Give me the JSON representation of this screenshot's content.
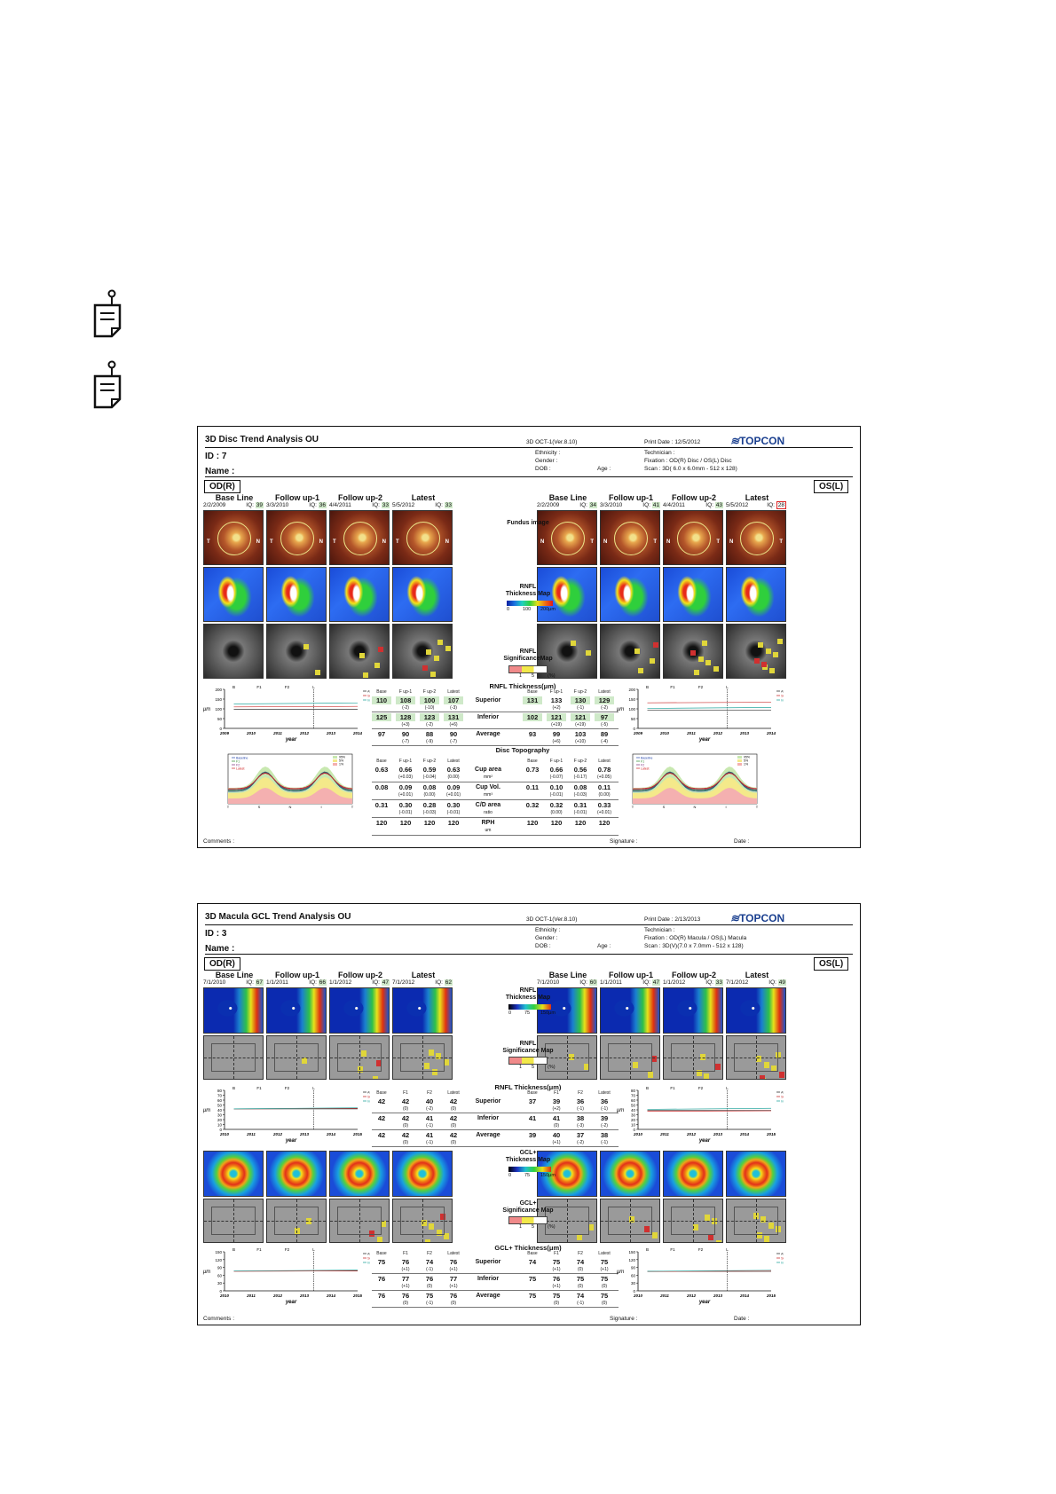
{
  "report1": {
    "title": "3D Disc Trend Analysis OU",
    "device": "3D OCT-1(Ver.8.10)",
    "print_date": "Print Date : 12/5/2012",
    "brand": "TOPCON",
    "id": "ID : 7",
    "name": "Name :",
    "ethnicity": "Ethnicity :",
    "gender": "Gender :",
    "dob": "DOB :",
    "age": "Age :",
    "technician": "Technician :",
    "fixation": "Fixation : OD(R) Disc / OS(L) Disc",
    "scan": "Scan : 3D( 6.0 x 6.0mm - 512 x 128)",
    "od": "OD(R)",
    "os": "OS(L)",
    "visits_od": [
      {
        "label": "Base Line",
        "date": "2/2/2009",
        "iq": "39"
      },
      {
        "label": "Follow up-1",
        "date": "3/3/2010",
        "iq": "36"
      },
      {
        "label": "Follow up-2",
        "date": "4/4/2011",
        "iq": "33"
      },
      {
        "label": "Latest",
        "date": "5/5/2012",
        "iq": "33"
      }
    ],
    "visits_os": [
      {
        "label": "Base Line",
        "date": "2/2/2009",
        "iq": "34"
      },
      {
        "label": "Follow up-1",
        "date": "3/3/2010",
        "iq": "41"
      },
      {
        "label": "Follow up-2",
        "date": "4/4/2011",
        "iq": "43"
      },
      {
        "label": "Latest",
        "date": "5/5/2012",
        "iq": "28"
      }
    ],
    "center_fundus": "Fundus image",
    "center_thick": "RNFL\nThickness Map",
    "thick_scale": [
      "0",
      "100",
      "200μm"
    ],
    "center_sig": "RNFL\nSignificanceMap",
    "sig_scale": [
      "1",
      "5",
      "(%)"
    ],
    "rnfl_title": "RNFL Thickness(μm)",
    "rnfl_rows": [
      {
        "label": "Superior",
        "od": [
          "110",
          "108",
          "100",
          "107"
        ],
        "od_sub": [
          "",
          "(-2)",
          "(-10)",
          "(-3)"
        ],
        "os": [
          "131",
          "133",
          "130",
          "129"
        ],
        "os_sub": [
          "",
          "(+2)",
          "(-1)",
          "(-2)"
        ]
      },
      {
        "label": "Inferior",
        "od": [
          "125",
          "128",
          "123",
          "131"
        ],
        "od_sub": [
          "",
          "(+3)",
          "(-2)",
          "(+6)"
        ],
        "os": [
          "102",
          "121",
          "121",
          "97"
        ],
        "os_sub": [
          "",
          "(+19)",
          "(+19)",
          "(-5)"
        ]
      },
      {
        "label": "Average",
        "od": [
          "97",
          "90",
          "88",
          "90"
        ],
        "od_sub": [
          "",
          "(-7)",
          "(-9)",
          "(-7)"
        ],
        "os": [
          "93",
          "99",
          "103",
          "89"
        ],
        "os_sub": [
          "",
          "(+6)",
          "(+10)",
          "(-4)"
        ]
      }
    ],
    "topo_title": "Disc Topography",
    "topo_rows": [
      {
        "label": "Cup area",
        "unit": "mm²",
        "od": [
          "0.63",
          "0.66",
          "0.59",
          "0.63"
        ],
        "od_sub": [
          "",
          "(+0.03)",
          "(-0.04)",
          "(0.00)"
        ],
        "os": [
          "0.73",
          "0.66",
          "0.56",
          "0.78"
        ],
        "os_sub": [
          "",
          "(-0.07)",
          "(-0.17)",
          "(+0.05)"
        ]
      },
      {
        "label": "Cup Vol.",
        "unit": "mm³",
        "od": [
          "0.08",
          "0.09",
          "0.08",
          "0.09"
        ],
        "od_sub": [
          "",
          "(+0.01)",
          "(0.00)",
          "(+0.01)"
        ],
        "os": [
          "0.11",
          "0.10",
          "0.08",
          "0.11"
        ],
        "os_sub": [
          "",
          "(-0.01)",
          "(-0.03)",
          "(0.00)"
        ]
      },
      {
        "label": "C/D area",
        "unit": "ratio",
        "od": [
          "0.31",
          "0.30",
          "0.28",
          "0.30"
        ],
        "od_sub": [
          "",
          "(-0.01)",
          "(-0.03)",
          "(-0.01)"
        ],
        "os": [
          "0.32",
          "0.32",
          "0.31",
          "0.33"
        ],
        "os_sub": [
          "",
          "(0.00)",
          "(-0.01)",
          "(+0.01)"
        ]
      },
      {
        "label": "RPH",
        "unit": "um",
        "od": [
          "120",
          "120",
          "120",
          "120"
        ],
        "od_sub": [
          "",
          "",
          "",
          ""
        ],
        "os": [
          "120",
          "120",
          "120",
          "120"
        ],
        "os_sub": [
          "",
          "",
          "",
          ""
        ]
      }
    ],
    "col_heads": [
      "Base",
      "F up-1",
      "F up-2",
      "Latest"
    ],
    "trend_years": [
      "2009",
      "2010",
      "2011",
      "2012",
      "2013",
      "2014"
    ],
    "trend_marks": [
      "B",
      "F1",
      "F2",
      "L"
    ],
    "trend_legend": [
      "Average",
      "Superior",
      "Inferior"
    ],
    "y_label": "μm",
    "x_label": "year",
    "y_ticks": [
      "0",
      "50",
      "100",
      "150",
      "200"
    ],
    "tsnit_legend": [
      "Baseline",
      "F1",
      "F2",
      "Latest"
    ],
    "tsnit_norm": [
      "95%",
      "5%",
      "1%"
    ],
    "tsnit_axis": [
      "T",
      "S",
      "N",
      "I",
      "T"
    ],
    "comments": "Comments :",
    "signature": "Signature :",
    "date": "Date :"
  },
  "report2": {
    "title": "3D Macula GCL Trend Analysis OU",
    "device": "3D OCT-1(Ver.8.10)",
    "print_date": "Print Date : 2/13/2013",
    "brand": "TOPCON",
    "id": "ID : 3",
    "name": "Name :",
    "ethnicity": "Ethnicity :",
    "gender": "Gender :",
    "dob": "DOB :",
    "age": "Age :",
    "technician": "Technician :",
    "fixation": "Fixation : OD(R) Macula / OS(L) Macula",
    "scan": "Scan : 3D(V)(7.0 x 7.0mm - 512 x 128)",
    "od": "OD(R)",
    "os": "OS(L)",
    "visits_od": [
      {
        "label": "Base Line",
        "date": "7/1/2010",
        "iq": "67"
      },
      {
        "label": "Follow up-1",
        "date": "1/1/2011",
        "iq": "66"
      },
      {
        "label": "Follow up-2",
        "date": "1/1/2012",
        "iq": "47"
      },
      {
        "label": "Latest",
        "date": "7/1/2012",
        "iq": "62"
      }
    ],
    "visits_os": [
      {
        "label": "Base Line",
        "date": "7/1/2010",
        "iq": "60"
      },
      {
        "label": "Follow up-1",
        "date": "1/1/2011",
        "iq": "47"
      },
      {
        "label": "Follow up-2",
        "date": "1/1/2012",
        "iq": "33"
      },
      {
        "label": "Latest",
        "date": "7/1/2012",
        "iq": "49"
      }
    ],
    "center_rnfl": "RNFL\nThickness Map",
    "rnfl_scale": [
      "0",
      "75",
      "150μm"
    ],
    "center_rnfl_sig": "RNFL\nSignificance Map",
    "center_gcl": "GCL+\nThickness Map",
    "gcl_scale": [
      "0",
      "75",
      "150μm"
    ],
    "center_gcl_sig": "GCL+\nSignificance Map",
    "sig_scale": [
      "1",
      "5",
      "(%)"
    ],
    "col_heads": [
      "Base",
      "F1",
      "F2",
      "Latest"
    ],
    "rnfl_title": "RNFL Thickness(μm)",
    "rnfl_rows": [
      {
        "label": "Superior",
        "od": [
          "42",
          "42",
          "40",
          "42"
        ],
        "od_sub": [
          "",
          "(0)",
          "(-2)",
          "(0)"
        ],
        "os": [
          "37",
          "39",
          "36",
          "36"
        ],
        "os_sub": [
          "",
          "(+2)",
          "(-1)",
          "(-1)"
        ]
      },
      {
        "label": "Inferior",
        "od": [
          "42",
          "42",
          "41",
          "42"
        ],
        "od_sub": [
          "",
          "(0)",
          "(-1)",
          "(0)"
        ],
        "os": [
          "41",
          "41",
          "38",
          "39"
        ],
        "os_sub": [
          "",
          "(0)",
          "(-3)",
          "(-2)"
        ]
      },
      {
        "label": "Average",
        "od": [
          "42",
          "42",
          "41",
          "42"
        ],
        "od_sub": [
          "",
          "(0)",
          "(-1)",
          "(0)"
        ],
        "os": [
          "39",
          "40",
          "37",
          "38"
        ],
        "os_sub": [
          "",
          "(+1)",
          "(-2)",
          "(-1)"
        ]
      }
    ],
    "gcl_title": "GCL+ Thickness(μm)",
    "gcl_rows": [
      {
        "label": "Superior",
        "od": [
          "75",
          "76",
          "74",
          "76"
        ],
        "od_sub": [
          "",
          "(+1)",
          "(-1)",
          "(+1)"
        ],
        "os": [
          "74",
          "75",
          "74",
          "75"
        ],
        "os_sub": [
          "",
          "(+1)",
          "(0)",
          "(+1)"
        ]
      },
      {
        "label": "Inferior",
        "od": [
          "76",
          "77",
          "76",
          "77"
        ],
        "od_sub": [
          "",
          "(+1)",
          "(0)",
          "(+1)"
        ],
        "os": [
          "75",
          "76",
          "75",
          "75"
        ],
        "os_sub": [
          "",
          "(+1)",
          "(0)",
          "(0)"
        ]
      },
      {
        "label": "Average",
        "od": [
          "76",
          "76",
          "75",
          "76"
        ],
        "od_sub": [
          "",
          "(0)",
          "(-1)",
          "(0)"
        ],
        "os": [
          "75",
          "75",
          "74",
          "75"
        ],
        "os_sub": [
          "",
          "(0)",
          "(-1)",
          "(0)"
        ]
      }
    ],
    "trend_years": [
      "2010",
      "2011",
      "2012",
      "2013",
      "2014",
      "2015"
    ],
    "trend_marks": [
      "B",
      "F1",
      "F2",
      "L"
    ],
    "trend_legend": [
      "Average",
      "Superior",
      "Inferior"
    ],
    "y_label": "μm",
    "x_label": "year",
    "rnfl_y_ticks": [
      "0",
      "10",
      "20",
      "30",
      "40",
      "50",
      "60",
      "70",
      "80"
    ],
    "gcl_y_ticks": [
      "0",
      "30",
      "60",
      "90",
      "120",
      "150"
    ],
    "comments": "Comments :",
    "signature": "Signature :",
    "date": "Date :"
  }
}
